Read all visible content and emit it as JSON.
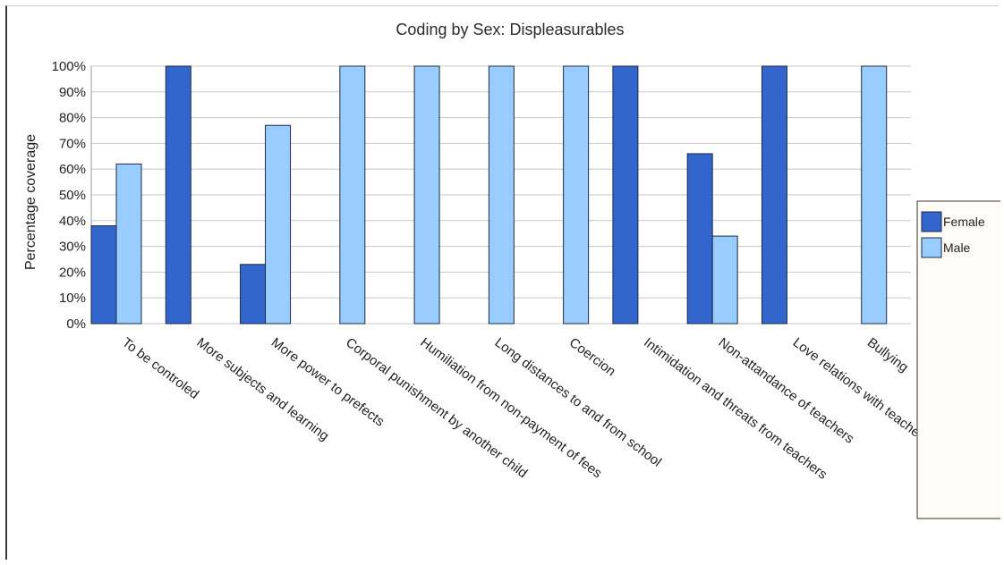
{
  "chart_data": {
    "type": "bar",
    "title": "Coding by Sex: Displeasurables",
    "xlabel": "",
    "ylabel": "Percentage coverage",
    "ylim": [
      0,
      100
    ],
    "ytick_labels": [
      "0%",
      "10%",
      "20%",
      "30%",
      "40%",
      "50%",
      "60%",
      "70%",
      "80%",
      "90%",
      "100%"
    ],
    "grid": true,
    "legend_position": "right",
    "categories": [
      "To be controled",
      "More subjects and learning",
      "More power to prefects",
      "Corporal punishment by another child",
      "Humiliation from non-payment of fees",
      "Long distances to and from school",
      "Coercion",
      "Intimidation and threats from teachers",
      "Non-attandance of teachers",
      "Love relations with teachers",
      "Bullying"
    ],
    "series": [
      {
        "name": "Female",
        "color": "#3366cc",
        "values": [
          38,
          100,
          23,
          0,
          0,
          0,
          0,
          100,
          66,
          100,
          0
        ]
      },
      {
        "name": "Male",
        "color": "#99ccff",
        "values": [
          62,
          0,
          77,
          100,
          100,
          100,
          100,
          0,
          34,
          0,
          100
        ]
      }
    ]
  }
}
